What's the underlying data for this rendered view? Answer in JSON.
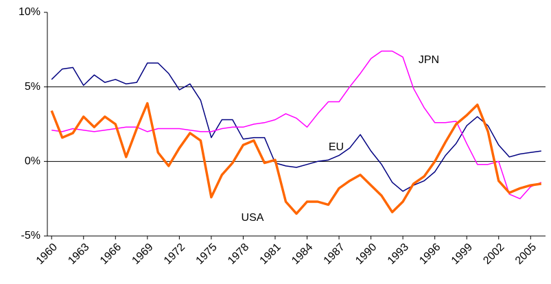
{
  "chart_data": {
    "type": "line",
    "x": [
      1960,
      1961,
      1962,
      1963,
      1964,
      1965,
      1966,
      1967,
      1968,
      1969,
      1970,
      1971,
      1972,
      1973,
      1974,
      1975,
      1976,
      1977,
      1978,
      1979,
      1980,
      1981,
      1982,
      1983,
      1984,
      1985,
      1986,
      1987,
      1988,
      1989,
      1990,
      1991,
      1992,
      1993,
      1994,
      1995,
      1996,
      1997,
      1998,
      1999,
      2000,
      2001,
      2002,
      2003,
      2004,
      2005,
      2006
    ],
    "xlim": [
      1959.6,
      2006.4
    ],
    "xticks": [
      1960,
      1963,
      1966,
      1969,
      1972,
      1975,
      1978,
      1981,
      1984,
      1987,
      1990,
      1993,
      1996,
      1999,
      2002,
      2005
    ],
    "ylim": [
      -5,
      10
    ],
    "yticks": [
      {
        "value": -5,
        "label": "-5%"
      },
      {
        "value": 0,
        "label": "0%"
      },
      {
        "value": 5,
        "label": "5%"
      },
      {
        "value": 10,
        "label": "10%"
      }
    ],
    "grid": true,
    "series": [
      {
        "name": "EU",
        "color": "#000080",
        "values": [
          5.5,
          6.2,
          6.3,
          5.1,
          5.8,
          5.3,
          5.5,
          5.2,
          5.3,
          6.6,
          6.6,
          5.9,
          4.8,
          5.2,
          4.1,
          1.6,
          2.8,
          2.8,
          1.5,
          1.6,
          1.6,
          -0.1,
          -0.3,
          -0.4,
          -0.2,
          0.0,
          0.1,
          0.4,
          0.9,
          1.8,
          0.7,
          -0.2,
          -1.4,
          -2.0,
          -1.6,
          -1.3,
          -0.7,
          0.4,
          1.2,
          2.4,
          3.0,
          2.4,
          1.1,
          0.3,
          0.5,
          0.6,
          0.7
        ]
      },
      {
        "name": "JPN",
        "color": "#ff00ff",
        "values": [
          2.1,
          2.0,
          2.2,
          2.1,
          2.0,
          2.1,
          2.2,
          2.3,
          2.3,
          2.0,
          2.2,
          2.2,
          2.2,
          2.1,
          2.0,
          2.0,
          2.2,
          2.3,
          2.3,
          2.5,
          2.6,
          2.8,
          3.2,
          2.9,
          2.3,
          3.2,
          4.0,
          4.0,
          5.0,
          5.9,
          6.9,
          7.4,
          7.4,
          7.0,
          4.9,
          3.6,
          2.6,
          2.6,
          2.7,
          1.2,
          -0.2,
          -0.2,
          0.0,
          -2.2,
          -2.5,
          -1.7,
          -1.4
        ]
      },
      {
        "name": "USA",
        "color": "#ff6600",
        "values": [
          3.4,
          1.6,
          1.9,
          3.0,
          2.3,
          3.0,
          2.5,
          0.3,
          2.2,
          3.9,
          0.6,
          -0.3,
          0.9,
          1.9,
          1.4,
          -2.4,
          -0.9,
          -0.1,
          1.1,
          1.4,
          -0.1,
          0.1,
          -2.7,
          -3.5,
          -2.7,
          -2.7,
          -2.9,
          -1.8,
          -1.3,
          -0.9,
          -1.6,
          -2.3,
          -3.4,
          -2.7,
          -1.5,
          -1.0,
          0.0,
          1.3,
          2.5,
          3.1,
          3.8,
          2.0,
          -1.3,
          -2.1,
          -1.8,
          -1.6,
          -1.5
        ]
      }
    ]
  }
}
